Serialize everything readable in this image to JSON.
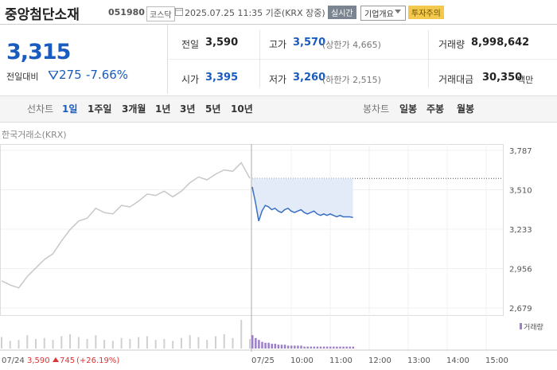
{
  "header": {
    "name": "중앙첨단소재",
    "code": "051980",
    "market": "코스닥",
    "datetime": "2025.07.25 11:35 기준(KRX 장중)",
    "buttons": [
      "실시간",
      "기업개요",
      "투자주의"
    ]
  },
  "quote": {
    "price": "3,315",
    "change_label": "전일대비",
    "change": "275",
    "change_pct": "-7.66%"
  },
  "stats": [
    {
      "label": "전일",
      "value": "3,590"
    },
    {
      "label": "고가",
      "value": "3,570",
      "extra": "(상한가 4,665)"
    },
    {
      "label": "거래량",
      "value": "8,998,642"
    },
    {
      "label": "시가",
      "value": "3,395"
    },
    {
      "label": "저가",
      "value": "3,260",
      "extra": "(하한가 2,515)"
    },
    {
      "label": "거래대금",
      "value": "30,350",
      "extra": "백만"
    }
  ],
  "tabs": {
    "line_label": "선차트",
    "periods": [
      "1일",
      "1주일",
      "3개월",
      "1년",
      "3년",
      "5년",
      "10년"
    ],
    "candle_label": "봉차트",
    "candles": [
      "일봉",
      "주봉",
      "월봉"
    ]
  },
  "chart": {
    "source": "한국거래소(KRX)",
    "ylim": [
      2679,
      3787
    ],
    "yticks": [
      {
        "value": 3787,
        "label": "3,787"
      },
      {
        "value": 3510,
        "label": "3,510"
      },
      {
        "value": 3233,
        "label": "3,233"
      },
      {
        "value": 2956,
        "label": "2,956"
      },
      {
        "value": 2679,
        "label": "2,679"
      }
    ],
    "prev_close": 3590,
    "volume_legend": "거래량",
    "day1": {
      "label": "07/24",
      "close": "3,590",
      "change": "745",
      "change_pct": "(+26.19%)",
      "values": [
        2870,
        2840,
        2820,
        2900,
        2960,
        3020,
        3060,
        3150,
        3230,
        3290,
        3310,
        3380,
        3350,
        3340,
        3400,
        3390,
        3430,
        3480,
        3470,
        3500,
        3460,
        3500,
        3560,
        3600,
        3580,
        3620,
        3650,
        3640,
        3700,
        3590
      ],
      "volume": [
        12,
        8,
        9,
        14,
        10,
        11,
        9,
        13,
        15,
        12,
        10,
        14,
        9,
        8,
        11,
        10,
        12,
        13,
        9,
        10,
        8,
        11,
        14,
        12,
        9,
        13,
        15,
        11,
        30,
        10
      ]
    },
    "day2": {
      "xticks": [
        "07/25",
        "10:00",
        "11:00",
        "12:00",
        "13:00",
        "14:00",
        "15:00"
      ],
      "values": [
        3530,
        3420,
        3290,
        3360,
        3400,
        3390,
        3370,
        3380,
        3360,
        3350,
        3370,
        3380,
        3360,
        3350,
        3360,
        3370,
        3350,
        3340,
        3350,
        3360,
        3340,
        3330,
        3340,
        3330,
        3340,
        3330,
        3320,
        3330,
        3320,
        3320,
        3320,
        3315
      ],
      "volume": [
        14,
        11,
        9,
        7,
        6,
        6,
        5,
        5,
        4,
        4,
        4,
        3,
        3,
        3,
        3,
        3,
        2,
        2,
        2,
        2,
        2,
        2,
        2,
        2,
        2,
        2,
        2,
        2,
        2,
        2,
        2,
        2
      ]
    }
  }
}
